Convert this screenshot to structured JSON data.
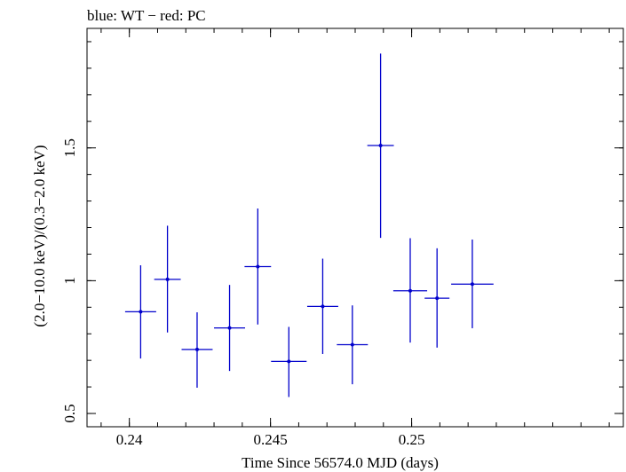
{
  "chart_data": {
    "type": "scatter",
    "title": "blue: WT − red: PC",
    "xlabel": "Time Since 56574.0 MJD (days)",
    "ylabel": "(2.0−10.0 keV)/(0.3−2.0 keV)",
    "xlim": [
      0.2385,
      0.2575
    ],
    "ylim": [
      0.45,
      1.95
    ],
    "xticks": [
      {
        "value": 0.24,
        "label": "0.24"
      },
      {
        "value": 0.245,
        "label": "0.245"
      },
      {
        "value": 0.25,
        "label": "0.25"
      }
    ],
    "yticks": [
      {
        "value": 0.5,
        "label": "0.5"
      },
      {
        "value": 1.0,
        "label": "1"
      },
      {
        "value": 1.5,
        "label": "1.5"
      }
    ],
    "x_minor_step": 0.001,
    "y_minor_step": 0.1,
    "grid": false,
    "series": [
      {
        "color": "#0000cc",
        "points": [
          {
            "x": 0.2404,
            "xerr": 0.00055,
            "y": 0.883,
            "ylow": 0.707,
            "yhigh": 1.058
          },
          {
            "x": 0.24135,
            "xerr": 0.00047,
            "y": 1.005,
            "ylow": 0.805,
            "yhigh": 1.207
          },
          {
            "x": 0.2424,
            "xerr": 0.00055,
            "y": 0.741,
            "ylow": 0.597,
            "yhigh": 0.881
          },
          {
            "x": 0.24355,
            "xerr": 0.00055,
            "y": 0.822,
            "ylow": 0.66,
            "yhigh": 0.984
          },
          {
            "x": 0.24455,
            "xerr": 0.00047,
            "y": 1.053,
            "ylow": 0.835,
            "yhigh": 1.272
          },
          {
            "x": 0.24565,
            "xerr": 0.00063,
            "y": 0.696,
            "ylow": 0.562,
            "yhigh": 0.826
          },
          {
            "x": 0.24685,
            "xerr": 0.00055,
            "y": 0.903,
            "ylow": 0.724,
            "yhigh": 1.083
          },
          {
            "x": 0.2479,
            "xerr": 0.00055,
            "y": 0.759,
            "ylow": 0.61,
            "yhigh": 0.907
          },
          {
            "x": 0.2489,
            "xerr": 0.00047,
            "y": 1.509,
            "ylow": 1.161,
            "yhigh": 1.855
          },
          {
            "x": 0.24995,
            "xerr": 0.0006,
            "y": 0.962,
            "ylow": 0.767,
            "yhigh": 1.16
          },
          {
            "x": 0.2509,
            "xerr": 0.00044,
            "y": 0.934,
            "ylow": 0.748,
            "yhigh": 1.122
          },
          {
            "x": 0.25215,
            "xerr": 0.00075,
            "y": 0.987,
            "ylow": 0.821,
            "yhigh": 1.155
          }
        ]
      }
    ]
  }
}
